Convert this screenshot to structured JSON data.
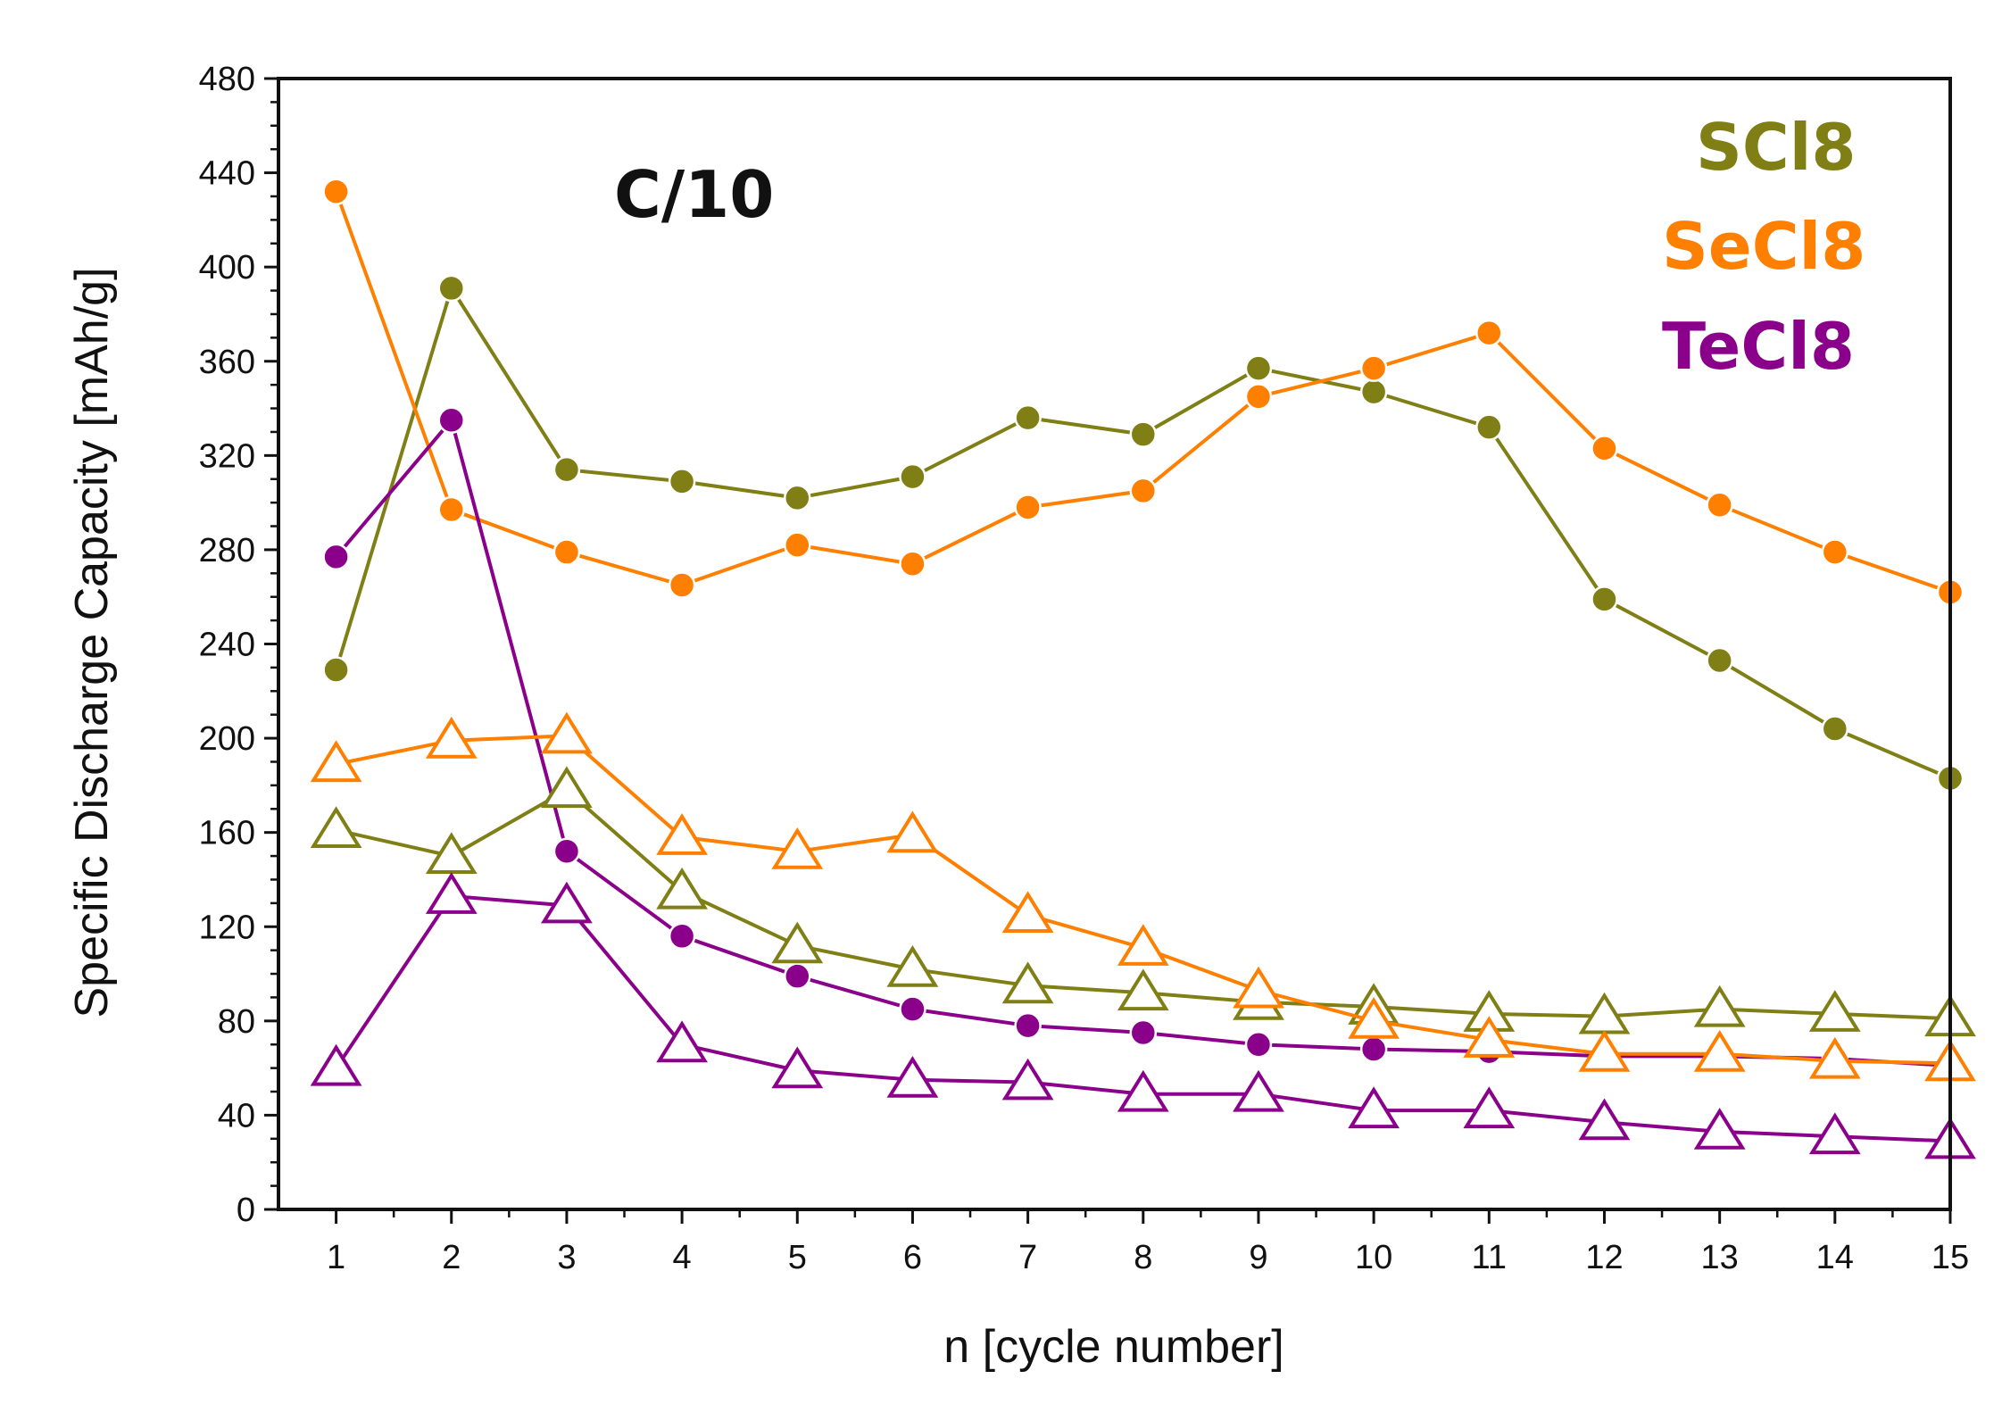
{
  "chart_data": {
    "type": "line",
    "title": "",
    "annotation": "C/10",
    "xlabel": "n [cycle number]",
    "ylabel": "Specific Discharge Capacity [mAh/g]",
    "xlim": [
      0.5,
      15
    ],
    "ylim": [
      0,
      480
    ],
    "x": [
      1,
      2,
      3,
      4,
      5,
      6,
      7,
      8,
      9,
      10,
      11,
      12,
      13,
      14,
      15
    ],
    "xticks": [
      "1",
      "2",
      "3",
      "4",
      "5",
      "6",
      "7",
      "8",
      "9",
      "10",
      "11",
      "12",
      "13",
      "14",
      "15"
    ],
    "yticks": [
      "0",
      "40",
      "80",
      "120",
      "160",
      "200",
      "240",
      "280",
      "320",
      "360",
      "400",
      "440",
      "480"
    ],
    "legend": [
      {
        "label": "SCl8",
        "color": "#7f7f16"
      },
      {
        "label": "SeCl8",
        "color": "#ff8000"
      },
      {
        "label": "TeCl8",
        "color": "#8b008b"
      }
    ],
    "legend_position": "top-right",
    "series": [
      {
        "name": "SCl8 (circles)",
        "material": "SCl8",
        "marker": "circle",
        "color": "#7f7f16",
        "values": [
          229,
          391,
          314,
          309,
          302,
          311,
          336,
          329,
          357,
          347,
          332,
          259,
          233,
          204,
          183
        ]
      },
      {
        "name": "SeCl8 (circles)",
        "material": "SeCl8",
        "marker": "circle",
        "color": "#ff8000",
        "values": [
          432,
          297,
          279,
          265,
          282,
          274,
          298,
          305,
          345,
          357,
          372,
          323,
          299,
          279,
          262
        ]
      },
      {
        "name": "TeCl8 (circles)",
        "material": "TeCl8",
        "marker": "circle",
        "color": "#8b008b",
        "values": [
          277,
          335,
          152,
          116,
          99,
          85,
          78,
          75,
          70,
          68,
          67,
          65,
          65,
          64,
          61
        ]
      },
      {
        "name": "SCl8 (triangles)",
        "material": "SCl8",
        "marker": "triangle",
        "color": "#7f7f16",
        "values": [
          161,
          150,
          178,
          135,
          112,
          102,
          95,
          92,
          88,
          86,
          83,
          82,
          85,
          83,
          81
        ]
      },
      {
        "name": "SeCl8 (triangles)",
        "material": "SeCl8",
        "marker": "triangle",
        "color": "#ff8000",
        "values": [
          189,
          199,
          201,
          158,
          152,
          159,
          125,
          111,
          93,
          80,
          72,
          66,
          66,
          63,
          62
        ]
      },
      {
        "name": "TeCl8 (triangles)",
        "material": "TeCl8",
        "marker": "triangle",
        "color": "#8b008b",
        "values": [
          60,
          133,
          129,
          70,
          59,
          55,
          54,
          49,
          49,
          42,
          42,
          37,
          33,
          31,
          29
        ]
      }
    ]
  }
}
